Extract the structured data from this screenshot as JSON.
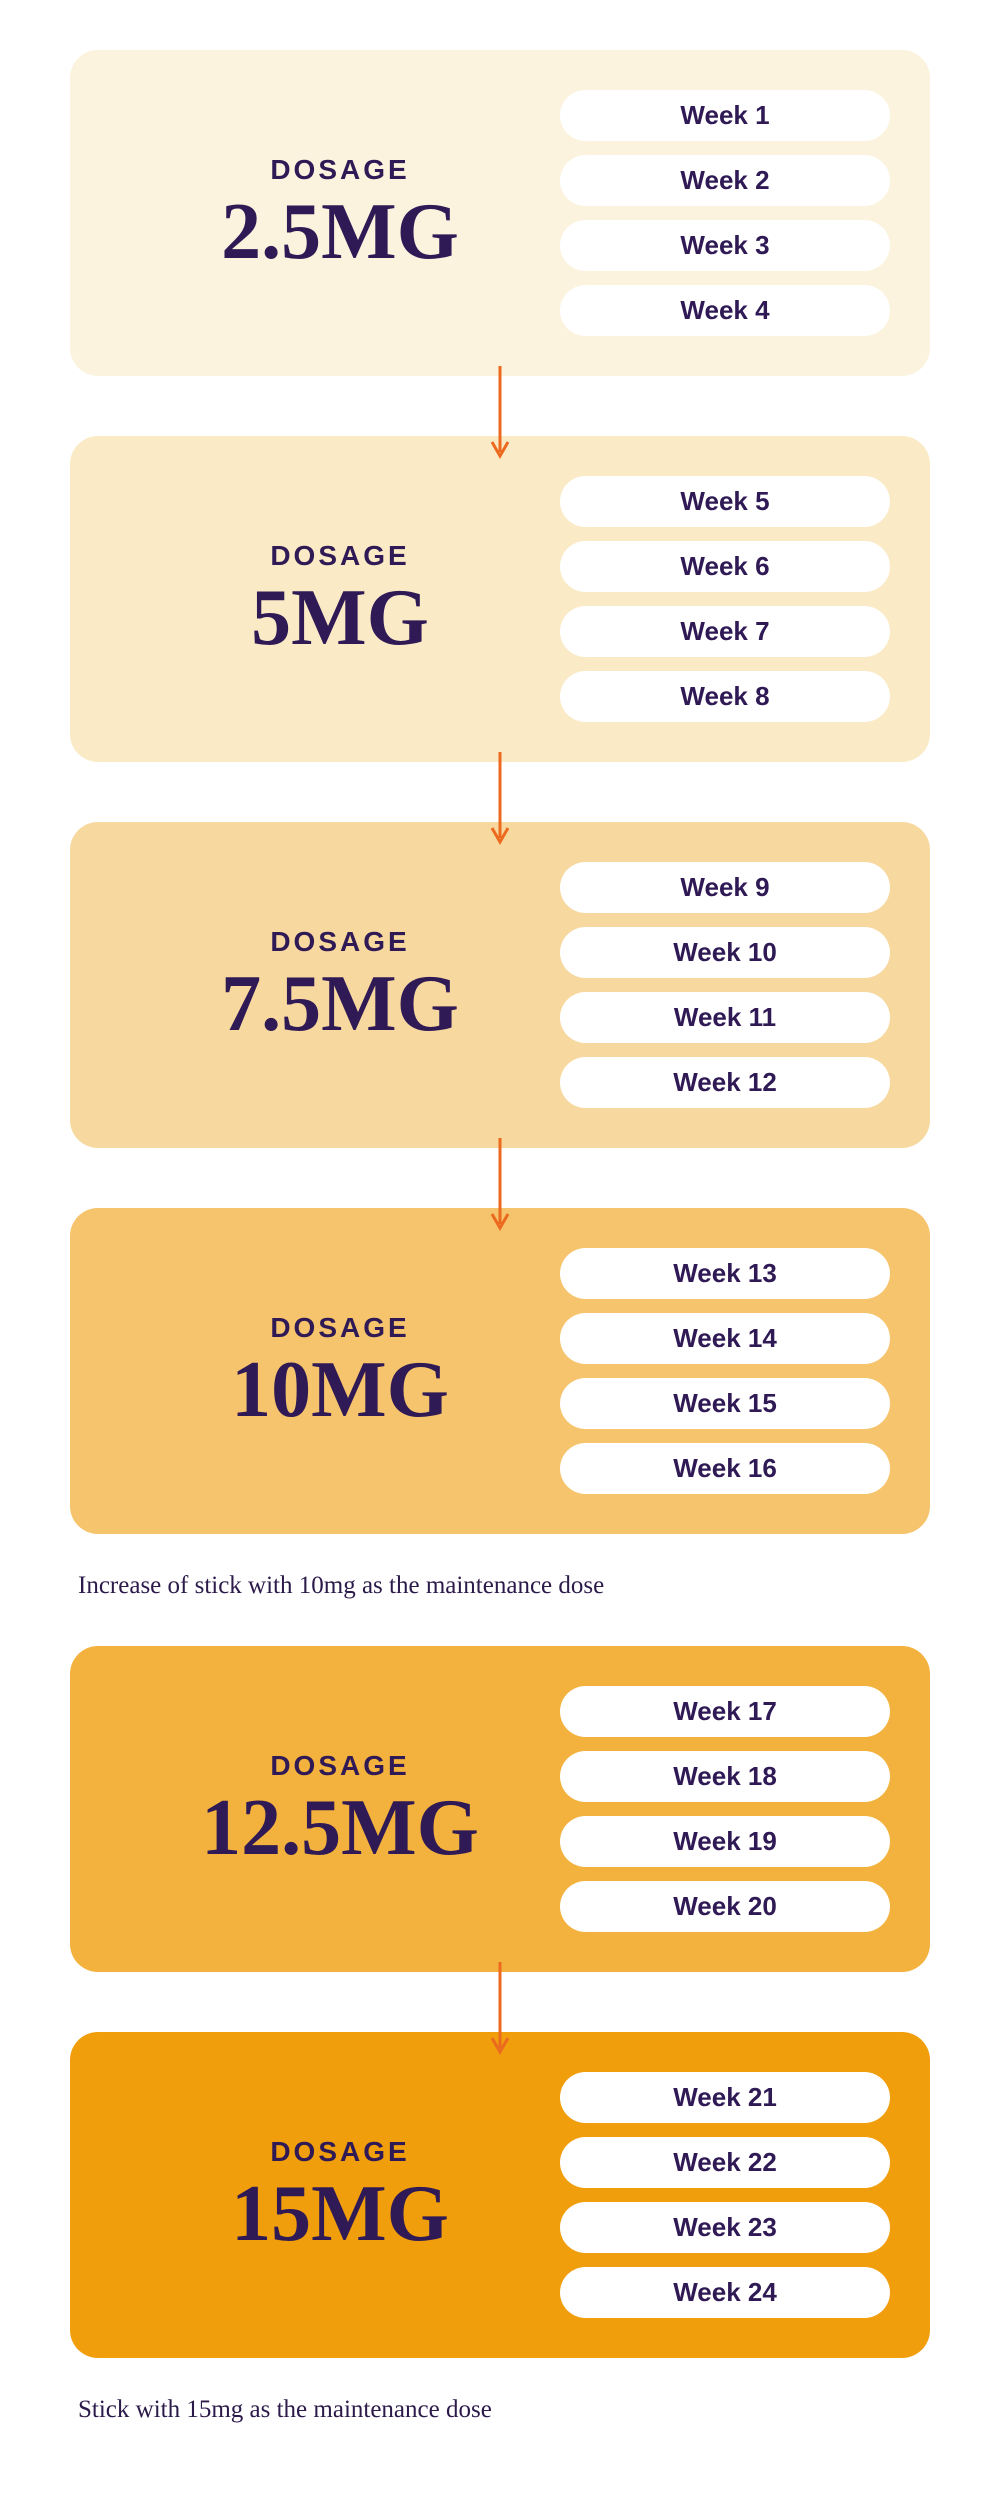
{
  "palette": {
    "text_primary": "#2f1a55",
    "pill_bg": "#ffffff",
    "arrow_color": "#ec6a1f"
  },
  "typography": {
    "dosage_label_fontsize": 28,
    "dosage_value_fontsize": 80,
    "week_pill_fontsize": 26,
    "note_fontsize": 25,
    "dosage_label_letterspacing": 3
  },
  "card": {
    "border_radius": 28,
    "padding": "40px 40px 40px 50px",
    "right_col_width": 330,
    "pill_gap": 14
  },
  "arrow": {
    "length": 90,
    "stroke_width": 3,
    "head_half_width": 8,
    "head_height": 14
  },
  "cards": [
    {
      "bg": "#fcf3de",
      "dosage_label": "DOSAGE",
      "dosage_value": "2.5MG",
      "weeks": [
        "Week 1",
        "Week 2",
        "Week 3",
        "Week 4"
      ],
      "arrow_after": true,
      "note_after": null
    },
    {
      "bg": "#faebc6",
      "dosage_label": "DOSAGE",
      "dosage_value": "5MG",
      "weeks": [
        "Week 5",
        "Week 6",
        "Week 7",
        "Week 8"
      ],
      "arrow_after": true,
      "note_after": null
    },
    {
      "bg": "#f7d89f",
      "dosage_label": "DOSAGE",
      "dosage_value": "7.5MG",
      "weeks": [
        "Week 9",
        "Week 10",
        "Week 11",
        "Week 12"
      ],
      "arrow_after": true,
      "note_after": null
    },
    {
      "bg": "#f5c46c",
      "dosage_label": "DOSAGE",
      "dosage_value": "10MG",
      "weeks": [
        "Week 13",
        "Week 14",
        "Week 15",
        "Week 16"
      ],
      "arrow_after": false,
      "note_after": "Increase of stick with 10mg as the maintenance dose"
    },
    {
      "bg": "#f3b23d",
      "dosage_label": "DOSAGE",
      "dosage_value": "12.5MG",
      "weeks": [
        "Week 17",
        "Week 18",
        "Week 19",
        "Week 20"
      ],
      "arrow_after": true,
      "note_after": null
    },
    {
      "bg": "#f09e0b",
      "dosage_label": "DOSAGE",
      "dosage_value": "15MG",
      "weeks": [
        "Week 21",
        "Week 22",
        "Week 23",
        "Week 24"
      ],
      "arrow_after": false,
      "note_after": "Stick with 15mg as the maintenance dose"
    }
  ]
}
